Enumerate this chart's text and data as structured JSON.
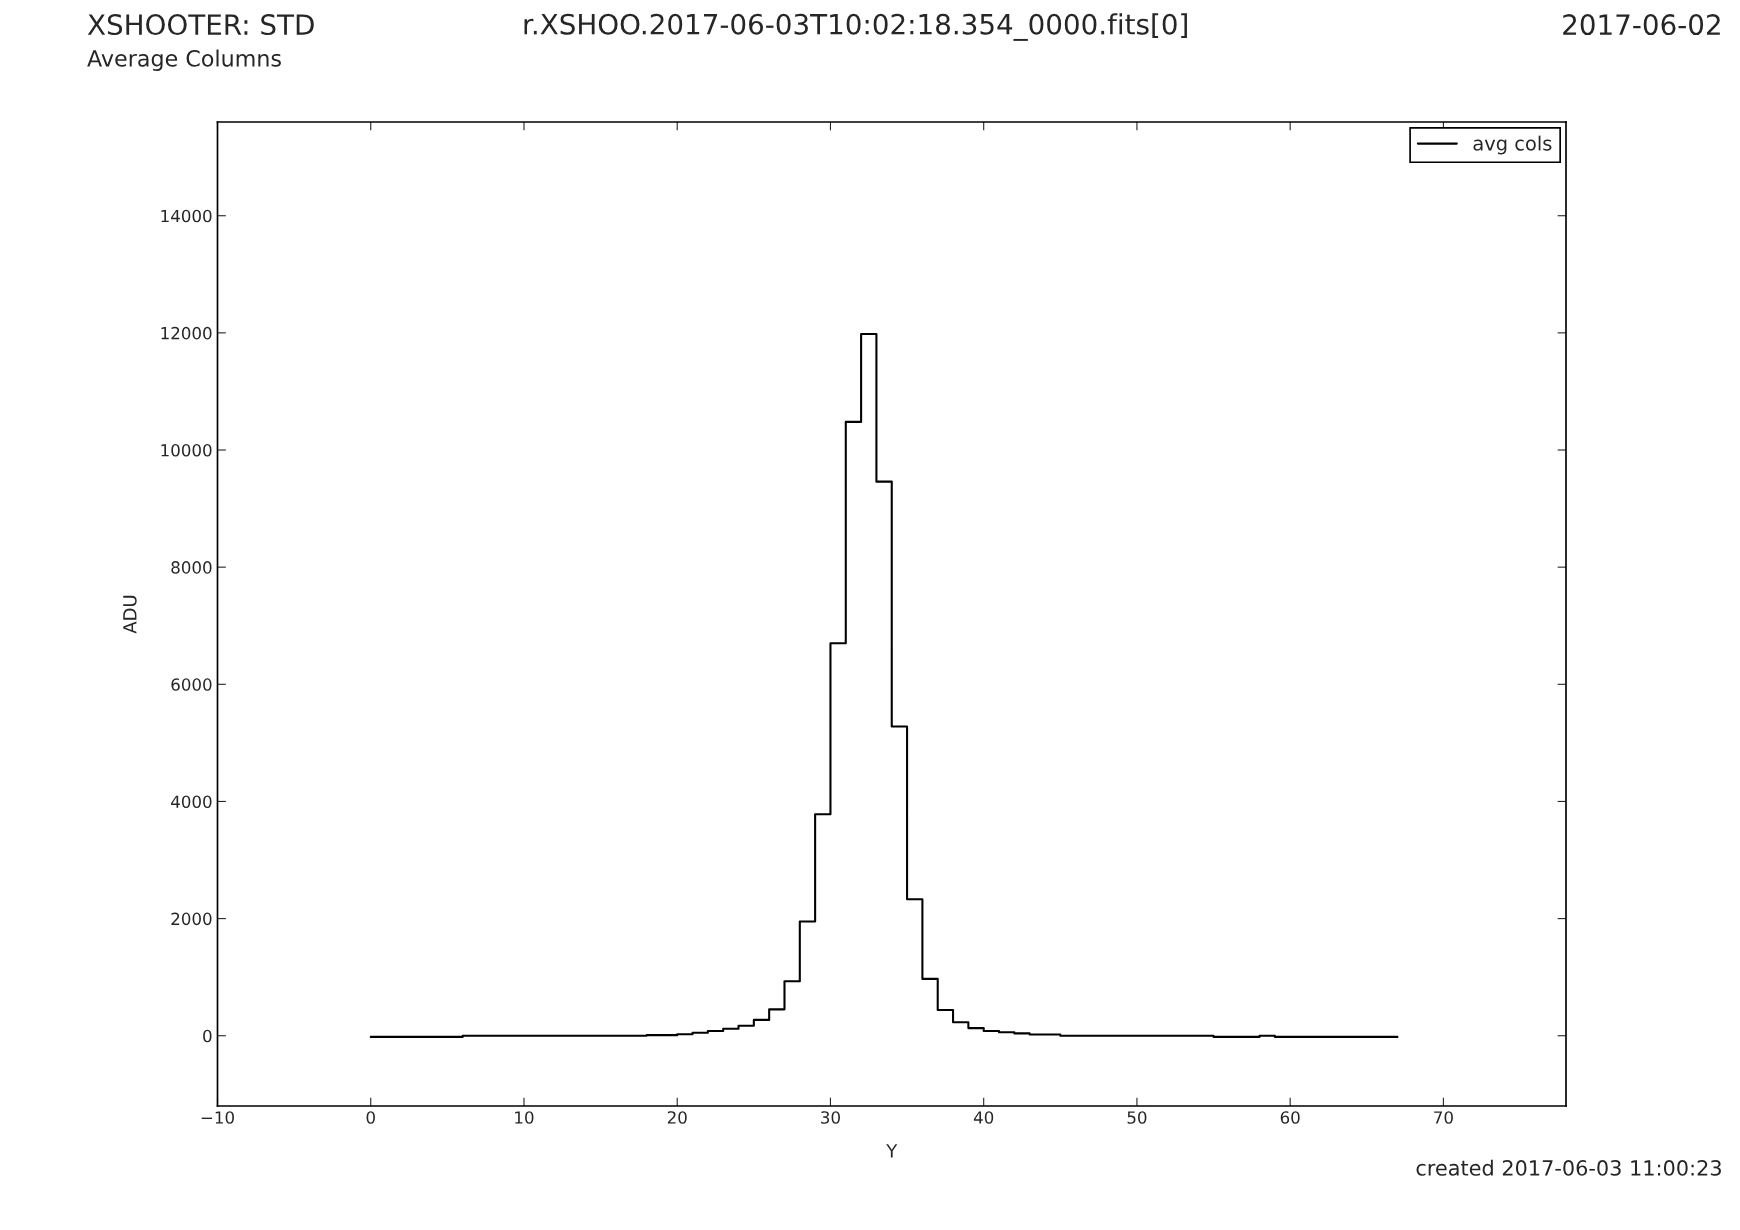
{
  "chart_data": {
    "type": "step",
    "title": "XSHOOTER: STD",
    "subtitle": "Average Columns",
    "annotations": [
      "r.XSHOO.2017-06-03T10:02:18.354_0000.fits[0]",
      "2017-06-02",
      "created 2017-06-03 11:00:23"
    ],
    "xlabel": "Y",
    "ylabel": "ADU",
    "x": [
      0,
      1,
      2,
      3,
      4,
      5,
      6,
      7,
      8,
      9,
      10,
      11,
      12,
      13,
      14,
      15,
      16,
      17,
      18,
      19,
      20,
      21,
      22,
      23,
      24,
      25,
      26,
      27,
      28,
      29,
      30,
      31,
      32,
      33,
      34,
      35,
      36,
      37,
      38,
      39,
      40,
      41,
      42,
      43,
      44,
      45,
      46,
      47,
      48,
      49,
      50,
      51,
      52,
      53,
      54,
      55,
      56,
      57,
      58,
      59,
      60,
      61,
      62,
      63,
      64,
      65,
      66,
      67
    ],
    "series": [
      {
        "name": "avg cols",
        "color": "#000000",
        "values": [
          -20,
          -20,
          -20,
          -20,
          -20,
          -20,
          0,
          0,
          0,
          0,
          0,
          0,
          0,
          0,
          0,
          0,
          0,
          0,
          10,
          10,
          25,
          50,
          80,
          120,
          170,
          270,
          450,
          930,
          1950,
          3780,
          6700,
          10480,
          11980,
          9460,
          5280,
          2330,
          970,
          440,
          230,
          130,
          80,
          60,
          40,
          20,
          20,
          0,
          0,
          0,
          0,
          0,
          0,
          0,
          0,
          0,
          0,
          -20,
          -20,
          -20,
          0,
          -20,
          -20,
          -20,
          -20,
          -20,
          -20,
          -20,
          -20,
          -20
        ]
      }
    ],
    "xlim": [
      -10,
      78
    ],
    "ylim": [
      -1200,
      15600
    ],
    "xticks": [
      -10,
      0,
      10,
      20,
      30,
      40,
      50,
      60,
      70
    ],
    "yticks": [
      0,
      2000,
      4000,
      6000,
      8000,
      10000,
      12000,
      14000
    ],
    "legend": "top right",
    "grid": false
  }
}
